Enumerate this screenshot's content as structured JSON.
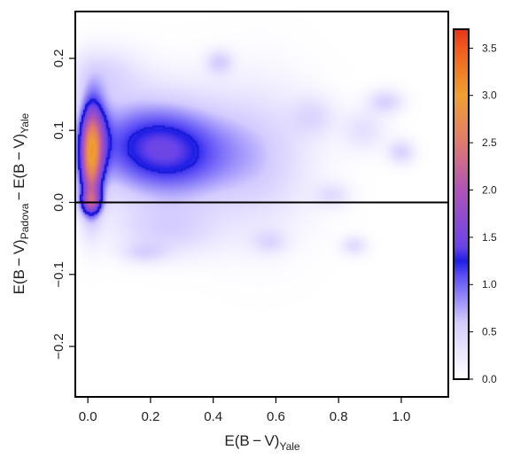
{
  "chart_data": {
    "type": "heatmap",
    "xlabel": {
      "main": "E(B − V)",
      "sub": "Yale"
    },
    "ylabel": {
      "part1_main": "E(B − V)",
      "part1_sub": "Padova",
      "sep": " − ",
      "part2_main": "E(B − V)",
      "part2_sub": "Yale"
    },
    "xlim": [
      -0.04,
      1.15
    ],
    "ylim": [
      -0.27,
      0.265
    ],
    "xticks": [
      0.0,
      0.2,
      0.4,
      0.6,
      0.8,
      1.0
    ],
    "xtick_labels": [
      "0.0",
      "0.2",
      "0.4",
      "0.6",
      "0.8",
      "1.0"
    ],
    "yticks": [
      -0.2,
      -0.1,
      0.0,
      0.1,
      0.2
    ],
    "ytick_labels": [
      "−0.2",
      "−0.1",
      "0.0",
      "0.1",
      "0.2"
    ],
    "reference_line_y": 0.0,
    "colorbar": {
      "range": [
        0,
        3.7
      ],
      "ticks": [
        0.0,
        0.5,
        1.0,
        1.5,
        2.0,
        2.5,
        3.0,
        3.5
      ],
      "tick_labels": [
        "0.0",
        "0.5",
        "1.0",
        "1.5",
        "2.0",
        "2.5",
        "3.0",
        "3.5"
      ],
      "colors": [
        {
          "v": 0.0,
          "c": "#ffffff"
        },
        {
          "v": 0.6,
          "c": "#d4ccff"
        },
        {
          "v": 1.1,
          "c": "#5a4cf5"
        },
        {
          "v": 1.25,
          "c": "#1e1ee6"
        },
        {
          "v": 1.4,
          "c": "#6a44e8"
        },
        {
          "v": 2.0,
          "c": "#b053b8"
        },
        {
          "v": 2.5,
          "c": "#e07a6e"
        },
        {
          "v": 3.0,
          "c": "#f0a030"
        },
        {
          "v": 3.5,
          "c": "#f25a1c"
        },
        {
          "v": 3.7,
          "c": "#e8331a"
        }
      ]
    },
    "density_blobs": [
      {
        "x": 0.01,
        "y": 0.06,
        "sx": 0.025,
        "sy": 0.05,
        "a": 2.2
      },
      {
        "x": 0.01,
        "y": 0.0,
        "sx": 0.025,
        "sy": 0.012,
        "a": 1.0
      },
      {
        "x": 0.03,
        "y": 0.1,
        "sx": 0.03,
        "sy": 0.035,
        "a": 0.5
      },
      {
        "x": 0.2,
        "y": 0.08,
        "sx": 0.17,
        "sy": 0.05,
        "a": 1.2
      },
      {
        "x": 0.3,
        "y": 0.05,
        "sx": 0.12,
        "sy": 0.045,
        "a": 0.35
      },
      {
        "x": 0.55,
        "y": 0.06,
        "sx": 0.12,
        "sy": 0.07,
        "a": 0.5
      },
      {
        "x": 0.25,
        "y": -0.04,
        "sx": 0.12,
        "sy": 0.025,
        "a": 0.45
      },
      {
        "x": 0.05,
        "y": 0.18,
        "sx": 0.08,
        "sy": 0.025,
        "a": 0.4
      },
      {
        "x": 0.42,
        "y": 0.195,
        "sx": 0.03,
        "sy": 0.012,
        "a": 0.5
      },
      {
        "x": 0.95,
        "y": 0.14,
        "sx": 0.04,
        "sy": 0.012,
        "a": 0.5
      },
      {
        "x": 1.0,
        "y": 0.07,
        "sx": 0.03,
        "sy": 0.012,
        "a": 0.5
      },
      {
        "x": 0.88,
        "y": 0.1,
        "sx": 0.05,
        "sy": 0.02,
        "a": 0.35
      },
      {
        "x": 0.78,
        "y": 0.01,
        "sx": 0.04,
        "sy": 0.012,
        "a": 0.35
      },
      {
        "x": 0.72,
        "y": 0.12,
        "sx": 0.05,
        "sy": 0.02,
        "a": 0.35
      },
      {
        "x": 0.85,
        "y": -0.06,
        "sx": 0.03,
        "sy": 0.01,
        "a": 0.4
      },
      {
        "x": 0.58,
        "y": -0.055,
        "sx": 0.04,
        "sy": 0.012,
        "a": 0.35
      },
      {
        "x": 0.18,
        "y": -0.07,
        "sx": 0.05,
        "sy": 0.01,
        "a": 0.35
      }
    ]
  }
}
